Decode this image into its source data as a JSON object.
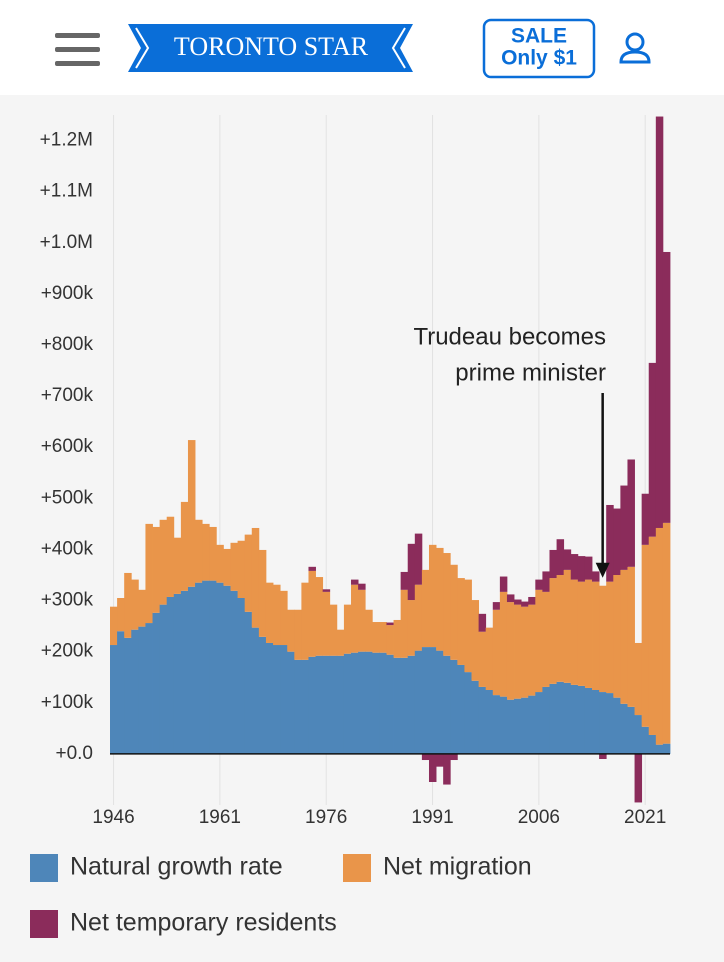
{
  "header": {
    "logo": "TORONTO STAR",
    "sale_line1": "SALE",
    "sale_line2": "Only $1"
  },
  "chart_data": {
    "type": "stacked-bar",
    "x": [
      1946,
      1947,
      1948,
      1949,
      1950,
      1951,
      1952,
      1953,
      1954,
      1955,
      1956,
      1957,
      1958,
      1959,
      1960,
      1961,
      1962,
      1963,
      1964,
      1965,
      1966,
      1967,
      1968,
      1969,
      1970,
      1971,
      1972,
      1973,
      1974,
      1975,
      1976,
      1977,
      1978,
      1979,
      1980,
      1981,
      1982,
      1983,
      1984,
      1985,
      1986,
      1987,
      1988,
      1989,
      1990,
      1991,
      1992,
      1993,
      1994,
      1995,
      1996,
      1997,
      1998,
      1999,
      2000,
      2001,
      2002,
      2003,
      2004,
      2005,
      2006,
      2007,
      2008,
      2009,
      2010,
      2011,
      2012,
      2013,
      2014,
      2015,
      2016,
      2017,
      2018,
      2019,
      2020,
      2021,
      2022,
      2023,
      2024
    ],
    "xlim": [
      1945.5,
      2024.5
    ],
    "xticks": [
      1946,
      1961,
      1976,
      1991,
      2006,
      2021
    ],
    "ylim": [
      -100000,
      1250000
    ],
    "yticks": [
      {
        "value": 0,
        "label": "+0.0"
      },
      {
        "value": 100000,
        "label": "+100k"
      },
      {
        "value": 200000,
        "label": "+200k"
      },
      {
        "value": 300000,
        "label": "+300k"
      },
      {
        "value": 400000,
        "label": "+400k"
      },
      {
        "value": 500000,
        "label": "+500k"
      },
      {
        "value": 600000,
        "label": "+600k"
      },
      {
        "value": 700000,
        "label": "+700k"
      },
      {
        "value": 800000,
        "label": "+800k"
      },
      {
        "value": 900000,
        "label": "+900k"
      },
      {
        "value": 1000000,
        "label": "+1.0M"
      },
      {
        "value": 1100000,
        "label": "+1.1M"
      },
      {
        "value": 1200000,
        "label": "+1.2M"
      }
    ],
    "grid": "x",
    "series": [
      {
        "name": "Natural growth rate",
        "color": "#4e86b9",
        "values": [
          213000,
          240000,
          227000,
          243000,
          249000,
          256000,
          276000,
          292000,
          307000,
          313000,
          319000,
          327000,
          335000,
          339000,
          339000,
          335000,
          329000,
          319000,
          305000,
          278000,
          247000,
          229000,
          217000,
          213000,
          213000,
          200000,
          184000,
          184000,
          190000,
          192000,
          192000,
          192000,
          192000,
          196000,
          198000,
          200000,
          200000,
          198000,
          198000,
          194000,
          188000,
          188000,
          192000,
          202000,
          209000,
          209000,
          202000,
          192000,
          184000,
          174000,
          160000,
          143000,
          131000,
          125000,
          115000,
          112000,
          106000,
          108000,
          110000,
          114000,
          121000,
          131000,
          137000,
          141000,
          139000,
          135000,
          133000,
          129000,
          125000,
          121000,
          119000,
          110000,
          98000,
          92000,
          76000,
          53000,
          37000,
          18000,
          20000
        ]
      },
      {
        "name": "Net migration",
        "color": "#e9954a",
        "values": [
          75000,
          65000,
          127000,
          98000,
          72000,
          194000,
          168000,
          166000,
          157000,
          110000,
          174000,
          287000,
          123000,
          111000,
          105000,
          74000,
          72000,
          94000,
          112000,
          151000,
          195000,
          170000,
          118000,
          118000,
          106000,
          82000,
          98000,
          151000,
          168000,
          154000,
          125000,
          100000,
          51000,
          96000,
          133000,
          121000,
          82000,
          60000,
          60000,
          58000,
          74000,
          133000,
          109000,
          129000,
          151000,
          200000,
          201000,
          201000,
          186000,
          170000,
          181000,
          158000,
          108000,
          122000,
          167000,
          205000,
          191000,
          184000,
          178000,
          178000,
          200000,
          186000,
          207000,
          209000,
          221000,
          206000,
          204000,
          212000,
          212000,
          208000,
          218000,
          240000,
          262000,
          274000,
          141000,
          356000,
          388000,
          424000,
          432000
        ]
      },
      {
        "name": "Net temporary residents",
        "color": "#8b2c5b",
        "values": [
          0,
          0,
          0,
          0,
          0,
          0,
          0,
          0,
          0,
          0,
          0,
          0,
          0,
          0,
          0,
          0,
          0,
          0,
          0,
          0,
          0,
          0,
          0,
          0,
          0,
          0,
          0,
          0,
          8000,
          0,
          5000,
          0,
          0,
          0,
          10000,
          12000,
          0,
          0,
          0,
          5000,
          0,
          35000,
          110000,
          100000,
          -12000,
          -55000,
          -25000,
          -60000,
          -12000,
          0,
          0,
          0,
          35000,
          0,
          15000,
          30000,
          15000,
          10000,
          10000,
          15000,
          20000,
          40000,
          55000,
          70000,
          40000,
          50000,
          50000,
          45000,
          20000,
          -10000,
          150000,
          130000,
          165000,
          210000,
          -95000,
          100000,
          340000,
          805000,
          530000
        ]
      }
    ],
    "annotation": {
      "lines": [
        "Trudeau becomes",
        "prime minister"
      ],
      "x": 2015
    }
  }
}
